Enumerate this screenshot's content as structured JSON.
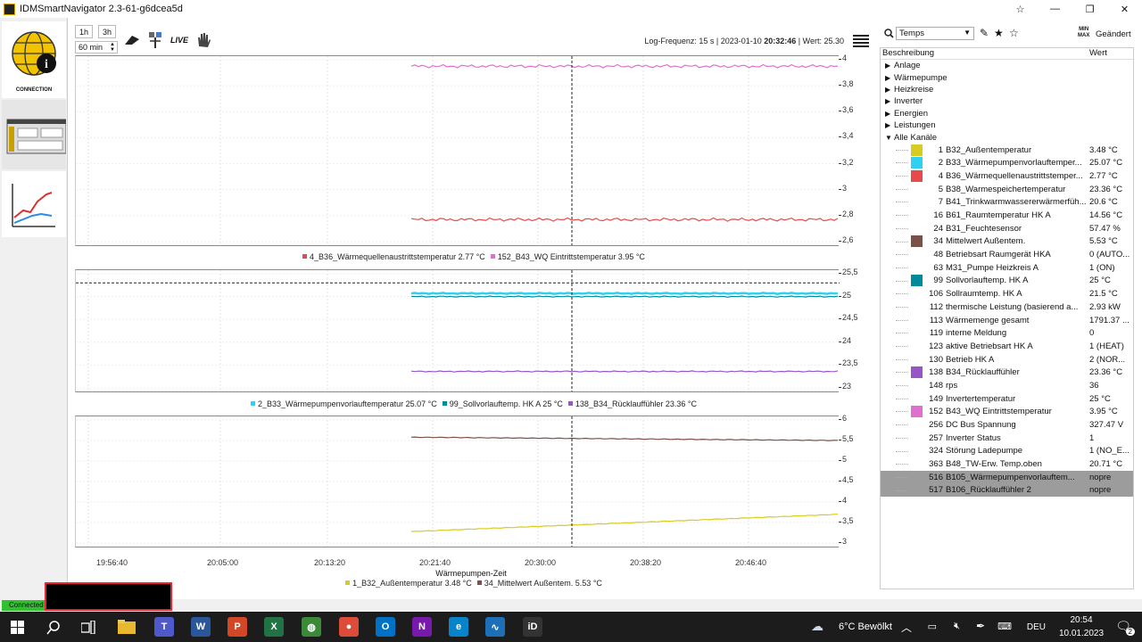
{
  "window": {
    "title": "IDMSmartNavigator 2.3-61-g6dcea5d",
    "min_glyph": "—",
    "max_glyph": "❐",
    "close_glyph": "✕",
    "pin_glyph": "☆"
  },
  "leftnav": {
    "connection_label": "CONNECTION"
  },
  "toolbar": {
    "btn_1h": "1h",
    "btn_3h": "3h",
    "range_value": "60 min",
    "live_label": "LIVE",
    "log_prefix": "Log-Frequenz: 15 s | 2023-01-10 ",
    "log_time": "20:32:46",
    "log_suffix": " | Wert: 25.30"
  },
  "colors": {
    "red": "#e84a4a",
    "pink": "#e070d0",
    "cyan": "#30d0f0",
    "teal": "#008b9c",
    "purple": "#9656c8",
    "yellow": "#d8cc20",
    "brown": "#7a5048"
  },
  "charts": [
    {
      "yticks": [
        "4",
        "3,8",
        "3,6",
        "3,4",
        "3,2",
        "3",
        "2,8",
        "2,6"
      ],
      "ymin": 2.6,
      "ymax": 4.0,
      "series": [
        {
          "color": "#e070d0",
          "value": 3.95
        },
        {
          "color": "#e84a4a",
          "value": 2.77
        }
      ],
      "legend": [
        {
          "color": "#e84a4a",
          "text": "4_B36_Wärmequellenaustrittstemperatur 2.77 °C"
        },
        {
          "color": "#e070d0",
          "text": "152_B43_WQ Eintrittstemperatur 3.95 °C"
        }
      ]
    },
    {
      "yticks": [
        "25,5",
        "25",
        "24,5",
        "24",
        "23,5",
        "23"
      ],
      "ymin": 23.0,
      "ymax": 25.5,
      "cursor_value": 25.3,
      "series": [
        {
          "color": "#30d0f0",
          "value": 25.07
        },
        {
          "color": "#008b9c",
          "value": 25.0
        },
        {
          "color": "#9656c8",
          "value": 23.36
        }
      ],
      "legend": [
        {
          "color": "#30d0f0",
          "text": "2_B33_Wärmepumpenvorlauftemperatur 25.07 °C"
        },
        {
          "color": "#008b9c",
          "text": "99_Sollvorlauftemp. HK A 25 °C"
        },
        {
          "color": "#9656c8",
          "text": "138_B34_Rücklauffühler 23.36 °C"
        }
      ]
    },
    {
      "yticks": [
        "6",
        "5,5",
        "5",
        "4,5",
        "4",
        "3,5",
        "3"
      ],
      "ymin": 3.0,
      "ymax": 6.0,
      "series": [
        {
          "color": "#7a5048",
          "start": 5.58,
          "end": 5.5
        },
        {
          "color": "#d8cc20",
          "start": 3.28,
          "end": 3.7
        }
      ],
      "legend": [
        {
          "color": "#d8cc20",
          "text": "1_B32_Außentemperatur 3.48 °C"
        },
        {
          "color": "#7a5048",
          "text": "34_Mittelwert Außentem. 5.53 °C"
        }
      ]
    }
  ],
  "xaxis": {
    "ticks": [
      "19:56:40",
      "20:05:00",
      "20:13:20",
      "20:21:40",
      "20:30:00",
      "20:38:20",
      "20:46:40"
    ],
    "label": "Wärmepumpen-Zeit"
  },
  "panel": {
    "search_value": "Temps",
    "minmax_top": "MIN",
    "minmax_bottom": "MAX",
    "changed_label": "Geändert",
    "col_desc": "Beschreibung",
    "col_value": "Wert",
    "categories": [
      "Anlage",
      "Wärmepumpe",
      "Heizkreise",
      "Inverter",
      "Energien",
      "Leistungen"
    ],
    "expanded_category": "Alle Kanäle",
    "channels": [
      {
        "num": "1",
        "name": "B32_Außentemperatur",
        "value": "3.48 °C",
        "color": "#d8cc20"
      },
      {
        "num": "2",
        "name": "B33_Wärmepumpenvorlauftemper...",
        "value": "25.07 °C",
        "color": "#30d0f0"
      },
      {
        "num": "4",
        "name": "B36_Wärmequellenaustrittstemper...",
        "value": "2.77 °C",
        "color": "#e84a4a"
      },
      {
        "num": "5",
        "name": "B38_Warmespeichertemperatur",
        "value": "23.36 °C",
        "color": ""
      },
      {
        "num": "7",
        "name": "B41_Trinkwarmwassererwärmerfüh...",
        "value": "20.6 °C",
        "color": ""
      },
      {
        "num": "16",
        "name": "B61_Raumtemperatur HK A",
        "value": "14.56 °C",
        "color": ""
      },
      {
        "num": "24",
        "name": "B31_Feuchtesensor",
        "value": "57.47 %",
        "color": ""
      },
      {
        "num": "34",
        "name": "Mittelwert Außentem.",
        "value": "5.53 °C",
        "color": "#7a5048"
      },
      {
        "num": "48",
        "name": "Betriebsart Raumgerät HKA",
        "value": "0 (AUTO...",
        "color": ""
      },
      {
        "num": "63",
        "name": "M31_Pumpe Heizkreis A",
        "value": "1 (ON)",
        "color": ""
      },
      {
        "num": "99",
        "name": "Sollvorlauftemp. HK A",
        "value": "25 °C",
        "color": "#008b9c"
      },
      {
        "num": "106",
        "name": "Sollraumtemp. HK A",
        "value": "21.5 °C",
        "color": ""
      },
      {
        "num": "112",
        "name": "thermische Leistung (basierend a...",
        "value": "2.93 kW",
        "color": ""
      },
      {
        "num": "113",
        "name": "Wärmemenge gesamt",
        "value": "1791.37 ...",
        "color": ""
      },
      {
        "num": "119",
        "name": "interne Meldung",
        "value": "0",
        "color": ""
      },
      {
        "num": "123",
        "name": "aktive Betriebsart HK A",
        "value": "1 (HEAT)",
        "color": ""
      },
      {
        "num": "130",
        "name": "Betrieb HK A",
        "value": "2 (NOR...",
        "color": ""
      },
      {
        "num": "138",
        "name": "B34_Rücklauffühler",
        "value": "23.36 °C",
        "color": "#9656c8"
      },
      {
        "num": "148",
        "name": "rps",
        "value": "36",
        "color": ""
      },
      {
        "num": "149",
        "name": "Invertertemperatur",
        "value": "25 °C",
        "color": ""
      },
      {
        "num": "152",
        "name": "B43_WQ Eintrittstemperatur",
        "value": "3.95 °C",
        "color": "#e070d0"
      },
      {
        "num": "256",
        "name": "DC Bus Spannung",
        "value": "327.47 V",
        "color": ""
      },
      {
        "num": "257",
        "name": "Inverter Status",
        "value": "1",
        "color": ""
      },
      {
        "num": "324",
        "name": "Störung Ladepumpe",
        "value": "1 (NO_E...",
        "color": ""
      },
      {
        "num": "363",
        "name": "B48_TW-Erw. Temp.oben",
        "value": "20.71 °C",
        "color": ""
      },
      {
        "num": "516",
        "name": "B105_Wärmepumpenvorlauftem...",
        "value": "nopre",
        "color": "",
        "selected": true
      },
      {
        "num": "517",
        "name": "B106_Rücklauffühler 2",
        "value": "nopre",
        "color": "",
        "selected": true
      }
    ]
  },
  "statusbar": {
    "connected": "Connected"
  },
  "taskbar": {
    "apps": [
      {
        "name": "teams",
        "glyph": "T",
        "color": "#5059c9"
      },
      {
        "name": "word",
        "glyph": "W",
        "color": "#2b579a"
      },
      {
        "name": "powerpoint",
        "glyph": "P",
        "color": "#d24726"
      },
      {
        "name": "excel",
        "glyph": "X",
        "color": "#217346"
      },
      {
        "name": "globe",
        "glyph": "◍",
        "color": "#3a8a3a"
      },
      {
        "name": "chrome",
        "glyph": "●",
        "color": "#dd4b39"
      },
      {
        "name": "outlook",
        "glyph": "O",
        "color": "#0072c6"
      },
      {
        "name": "onenote",
        "glyph": "N",
        "color": "#7719aa"
      },
      {
        "name": "edge",
        "glyph": "e",
        "color": "#0a84c8"
      },
      {
        "name": "chart-app",
        "glyph": "∿",
        "color": "#1d6fb8"
      },
      {
        "name": "idm",
        "glyph": "iD",
        "color": "#333"
      }
    ],
    "weather": "6°C Bewölkt",
    "lang": "DEU",
    "time": "20:54",
    "date": "10.01.2023",
    "notifications": "2"
  }
}
